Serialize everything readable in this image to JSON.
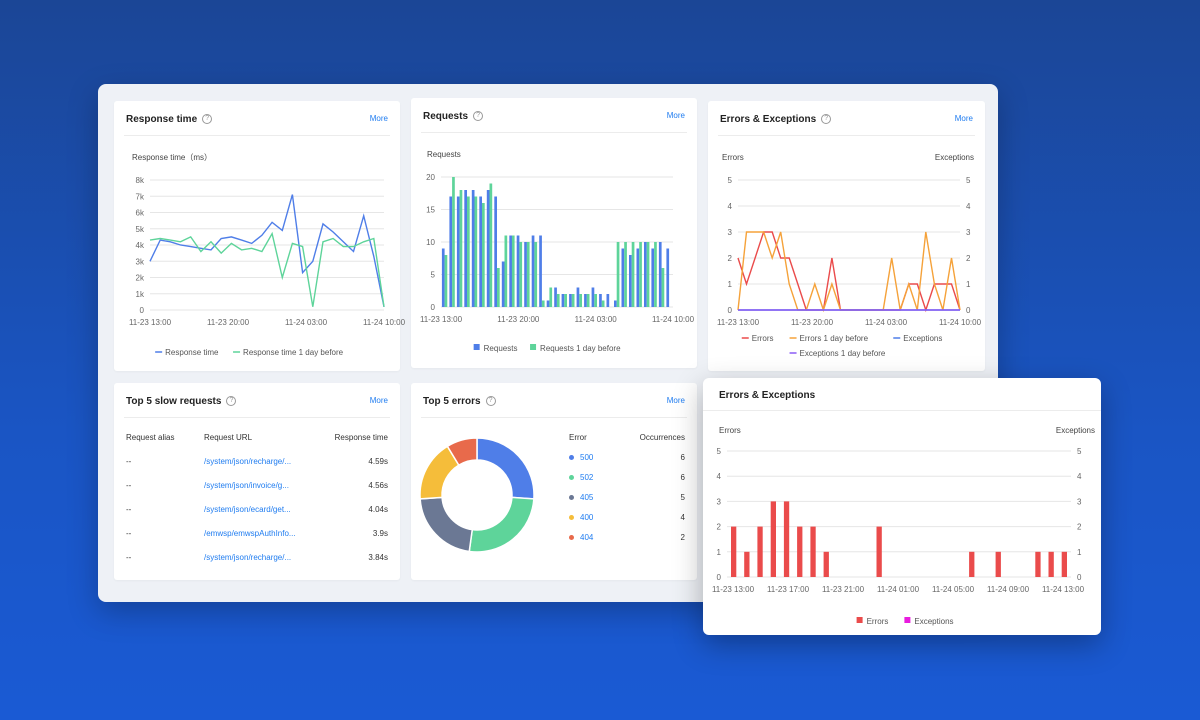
{
  "colors": {
    "blue": "#4f7ee8",
    "green": "#5ed49a",
    "red": "#ea4b4b",
    "orange": "#f5a23a",
    "purple": "#8a5cf5",
    "magenta": "#e81cde",
    "gray": "#6b7894",
    "yellow": "#f5bd3a",
    "salmon": "#e86a4b"
  },
  "help_icon": "?",
  "more_label": "More",
  "response_time": {
    "title": "Response time",
    "chart_data": {
      "type": "line",
      "ylabel": "Response time（ms）",
      "y_ticks": [
        "0",
        "1k",
        "2k",
        "3k",
        "4k",
        "5k",
        "6k",
        "7k",
        "8k"
      ],
      "x_ticks": [
        "11-23 13:00",
        "11-23 20:00",
        "11-24 03:00",
        "11-24 10:00"
      ],
      "ylim": [
        0,
        8000
      ],
      "series": [
        {
          "name": "Response time",
          "color": "#4f7ee8",
          "values": [
            3000,
            4300,
            4200,
            4000,
            3900,
            3800,
            3700,
            4400,
            4500,
            4300,
            4100,
            4600,
            5400,
            4900,
            7100,
            2300,
            3000,
            5300,
            4800,
            4200,
            3600,
            5800,
            3300,
            200
          ]
        },
        {
          "name": "Response time 1 day before",
          "color": "#5ed49a",
          "values": [
            4300,
            4400,
            4300,
            4200,
            4500,
            3600,
            4200,
            3500,
            4100,
            3700,
            3800,
            3600,
            4700,
            2000,
            4100,
            3900,
            200,
            4200,
            4400,
            3900,
            3900,
            4200,
            4400,
            200
          ]
        }
      ]
    }
  },
  "requests": {
    "title": "Requests",
    "chart_data": {
      "type": "bar",
      "ylabel": "Requests",
      "y_ticks": [
        "0",
        "5",
        "10",
        "15",
        "20"
      ],
      "x_ticks": [
        "11-23 13:00",
        "11-23 20:00",
        "11-24 03:00",
        "11-24 10:00"
      ],
      "ylim": [
        0,
        20
      ],
      "series": [
        {
          "name": "Requests",
          "color": "#4f7ee8",
          "values": [
            9,
            17,
            17,
            18,
            18,
            17,
            18,
            17,
            7,
            11,
            11,
            10,
            11,
            11,
            1,
            3,
            2,
            2,
            3,
            2,
            3,
            2,
            2,
            1,
            9,
            8,
            9,
            10,
            9,
            10,
            9
          ]
        },
        {
          "name": "Requests 1 day before",
          "color": "#5ed49a",
          "values": [
            8,
            20,
            18,
            17,
            17,
            16,
            19,
            6,
            11,
            11,
            10,
            10,
            10,
            1,
            3,
            2,
            2,
            2,
            2,
            2,
            2,
            1,
            0,
            10,
            10,
            10,
            10,
            10,
            10,
            6,
            0
          ]
        }
      ]
    }
  },
  "errors_exceptions": {
    "title": "Errors & Exceptions",
    "chart_data": {
      "type": "line",
      "ylabel": "Errors",
      "ylabel_right": "Exceptions",
      "y_ticks": [
        "0",
        "1",
        "2",
        "3",
        "4",
        "5"
      ],
      "x_ticks": [
        "11-23 13:00",
        "11-23 20:00",
        "11-24 03:00",
        "11-24 10:00"
      ],
      "ylim": [
        0,
        5
      ],
      "series": [
        {
          "name": "Errors",
          "color": "#ea4b4b",
          "values": [
            2,
            1,
            2,
            3,
            3,
            2,
            2,
            1,
            0,
            0,
            0,
            2,
            0,
            0,
            0,
            0,
            0,
            0,
            0,
            0,
            1,
            1,
            0,
            1,
            1,
            1,
            0
          ]
        },
        {
          "name": "Errors 1 day before",
          "color": "#f5a23a",
          "values": [
            0,
            3,
            3,
            3,
            2,
            3,
            1,
            0,
            0,
            1,
            0,
            1,
            0,
            0,
            0,
            0,
            0,
            0,
            2,
            0,
            1,
            0,
            3,
            1,
            0,
            2,
            0
          ]
        },
        {
          "name": "Exceptions",
          "color": "#4f7ee8",
          "values": [
            0,
            0,
            0,
            0,
            0,
            0,
            0,
            0,
            0,
            0,
            0,
            0,
            0,
            0,
            0,
            0,
            0,
            0,
            0,
            0,
            0,
            0,
            0,
            0,
            0,
            0,
            0
          ]
        },
        {
          "name": "Exceptions 1 day before",
          "color": "#8a5cf5",
          "values": [
            0,
            0,
            0,
            0,
            0,
            0,
            0,
            0,
            0,
            0,
            0,
            0,
            0,
            0,
            0,
            0,
            0,
            0,
            0,
            0,
            0,
            0,
            0,
            0,
            0,
            0,
            0
          ]
        }
      ]
    }
  },
  "slow_requests": {
    "title": "Top 5 slow requests",
    "headers": {
      "alias": "Request alias",
      "url": "Request URL",
      "time": "Response time"
    },
    "rows": [
      {
        "alias": "--",
        "url": "/system/json/recharge/...",
        "time": "4.59s"
      },
      {
        "alias": "--",
        "url": "/system/json/invoice/g...",
        "time": "4.56s"
      },
      {
        "alias": "--",
        "url": "/system/json/ecard/get...",
        "time": "4.04s"
      },
      {
        "alias": "--",
        "url": "/emwsp/emwspAuthInfo...",
        "time": "3.9s"
      },
      {
        "alias": "--",
        "url": "/system/json/recharge/...",
        "time": "3.84s"
      }
    ]
  },
  "top_errors": {
    "title": "Top 5 errors",
    "headers": {
      "error": "Error",
      "occurrences": "Occurrences"
    },
    "chart_data": {
      "type": "pie",
      "categories": [
        "500",
        "502",
        "405",
        "400",
        "404"
      ],
      "values": [
        6,
        6,
        5,
        4,
        2
      ],
      "colors": [
        "#4f7ee8",
        "#5ed49a",
        "#6b7894",
        "#f5bd3a",
        "#e86a4b"
      ]
    }
  },
  "overlay": {
    "title": "Errors & Exceptions",
    "chart_data": {
      "type": "bar",
      "ylabel": "Errors",
      "ylabel_right": "Exceptions",
      "y_ticks": [
        "0",
        "1",
        "2",
        "3",
        "4",
        "5"
      ],
      "x_ticks": [
        "11-23 13:00",
        "11-23 17:00",
        "11-23 21:00",
        "11-24 01:00",
        "11-24 05:00",
        "11-24 09:00",
        "11-24 13:00"
      ],
      "ylim": [
        0,
        5
      ],
      "series": [
        {
          "name": "Errors",
          "color": "#ea4b4b",
          "values": [
            2,
            1,
            2,
            3,
            3,
            2,
            2,
            1,
            0,
            0,
            0,
            2,
            0,
            0,
            0,
            0,
            0,
            0,
            1,
            0,
            1,
            0,
            0,
            1,
            1,
            1
          ]
        },
        {
          "name": "Exceptions",
          "color": "#e81cde",
          "values": [
            0,
            0,
            0,
            0,
            0,
            0,
            0,
            0,
            0,
            0,
            0,
            0,
            0,
            0,
            0,
            0,
            0,
            0,
            0,
            0,
            0,
            0,
            0,
            0,
            0,
            0
          ]
        }
      ]
    }
  }
}
